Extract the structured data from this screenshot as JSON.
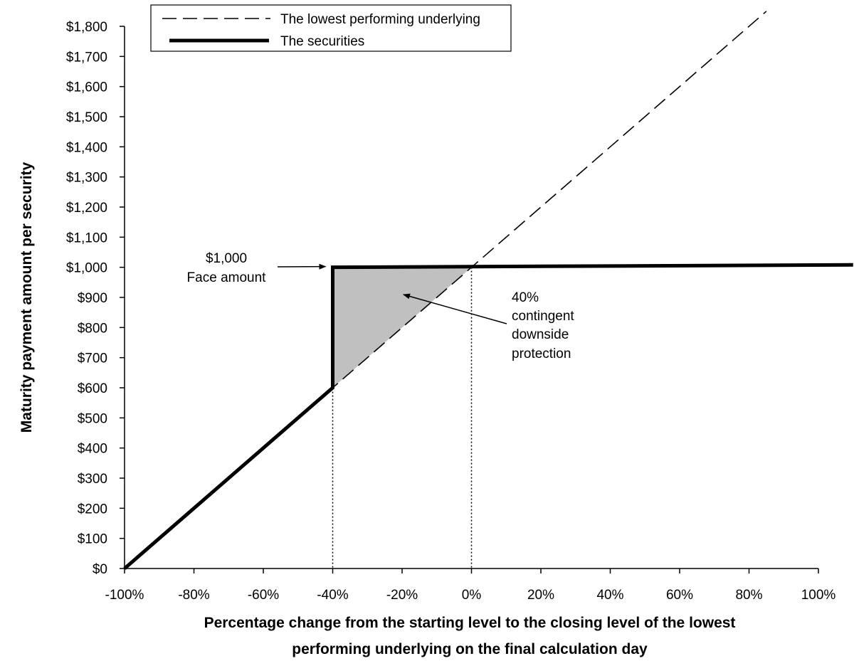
{
  "chart_data": {
    "type": "line",
    "xlabel_lines": [
      "Percentage change from the starting level to the closing level of the lowest",
      "performing underlying on the final calculation day"
    ],
    "ylabel": "Maturity payment amount per security",
    "xlim": [
      -100,
      100
    ],
    "ylim": [
      0,
      1800
    ],
    "x_ticks": [
      -100,
      -80,
      -60,
      -40,
      -20,
      0,
      20,
      40,
      60,
      80,
      100
    ],
    "x_tick_labels": [
      "-100%",
      "-80%",
      "-60%",
      "-40%",
      "-20%",
      "0%",
      "20%",
      "40%",
      "60%",
      "80%",
      "100%"
    ],
    "y_ticks": [
      0,
      100,
      200,
      300,
      400,
      500,
      600,
      700,
      800,
      900,
      1000,
      1100,
      1200,
      1300,
      1400,
      1500,
      1600,
      1700,
      1800
    ],
    "y_tick_labels": [
      "$0",
      "$100",
      "$200",
      "$300",
      "$400",
      "$500",
      "$600",
      "$700",
      "$800",
      "$900",
      "$1,000",
      "$1,100",
      "$1,200",
      "$1,300",
      "$1,400",
      "$1,500",
      "$1,600",
      "$1,700",
      "$1,800"
    ],
    "grid": false,
    "legend_position": "top-left",
    "series": [
      {
        "name": "The lowest performing underlying",
        "style": "dashed",
        "color": "#000000",
        "points": [
          [
            -100,
            0
          ],
          [
            85,
            1850
          ]
        ]
      },
      {
        "name": "The securities",
        "style": "solid-thick",
        "color": "#000000",
        "points": [
          [
            -100,
            0
          ],
          [
            -40,
            600
          ],
          [
            -40,
            1000
          ],
          [
            110,
            1008
          ]
        ]
      }
    ],
    "shaded_region": {
      "color": "#c0c0c0",
      "points": [
        [
          -40,
          600
        ],
        [
          -40,
          1000
        ],
        [
          0,
          1000
        ]
      ]
    },
    "reference_lines_x": [
      -40,
      0
    ],
    "annotations": [
      {
        "id": "face",
        "lines": [
          "$1,000",
          "Face amount"
        ],
        "points_to": [
          -40,
          1000
        ]
      },
      {
        "id": "protection",
        "lines": [
          "40%",
          "contingent",
          "downside",
          "protection"
        ],
        "points_to": [
          -20,
          900
        ]
      }
    ]
  }
}
